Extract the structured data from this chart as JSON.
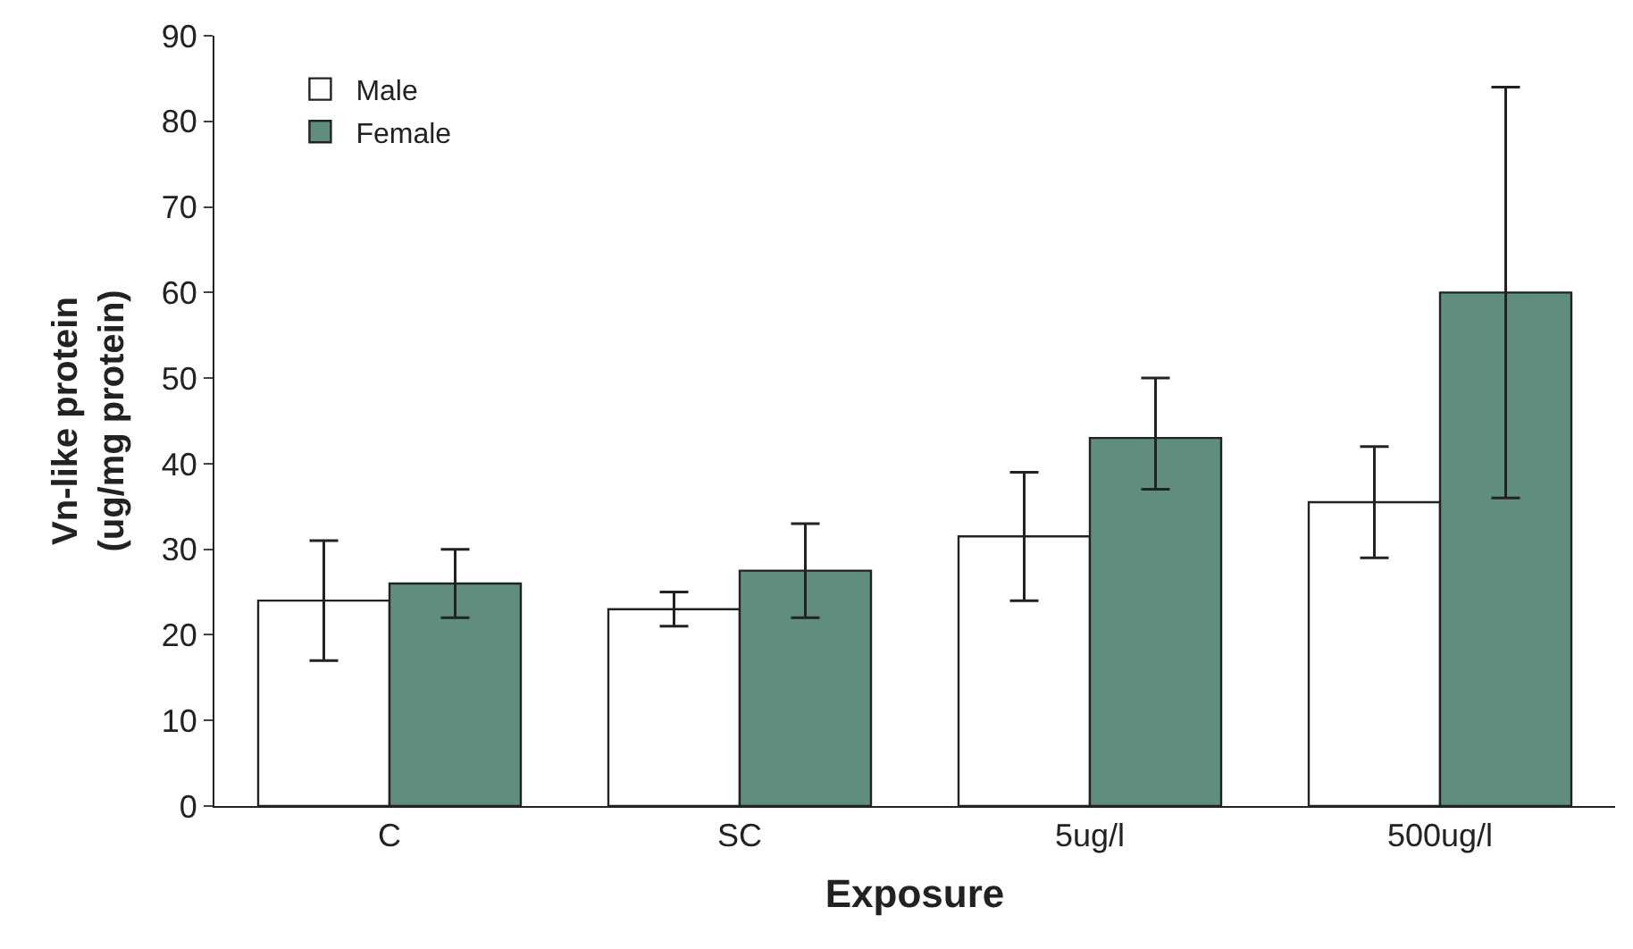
{
  "chart_data": {
    "type": "bar",
    "xlabel": "Exposure",
    "ylabel": "Vn-like protein\n(ug/mg protein)",
    "categories": [
      "C",
      "SC",
      "5ug/l",
      "500ug/l"
    ],
    "series": [
      {
        "name": "Male",
        "color": "#ffffff",
        "values": [
          24,
          23,
          31.5,
          35.5
        ],
        "errors": [
          [
            17,
            31
          ],
          [
            21,
            25
          ],
          [
            24,
            39
          ],
          [
            29,
            42
          ]
        ]
      },
      {
        "name": "Female",
        "color": "#5f8f7c",
        "values": [
          26,
          27.5,
          43,
          60
        ],
        "errors": [
          [
            22,
            30
          ],
          [
            22,
            33
          ],
          [
            37,
            50
          ],
          [
            36,
            84
          ]
        ]
      }
    ],
    "ylim": [
      0,
      90
    ],
    "yticks": [
      0,
      10,
      20,
      30,
      40,
      50,
      60,
      70,
      80,
      90
    ],
    "legend": "top left"
  }
}
